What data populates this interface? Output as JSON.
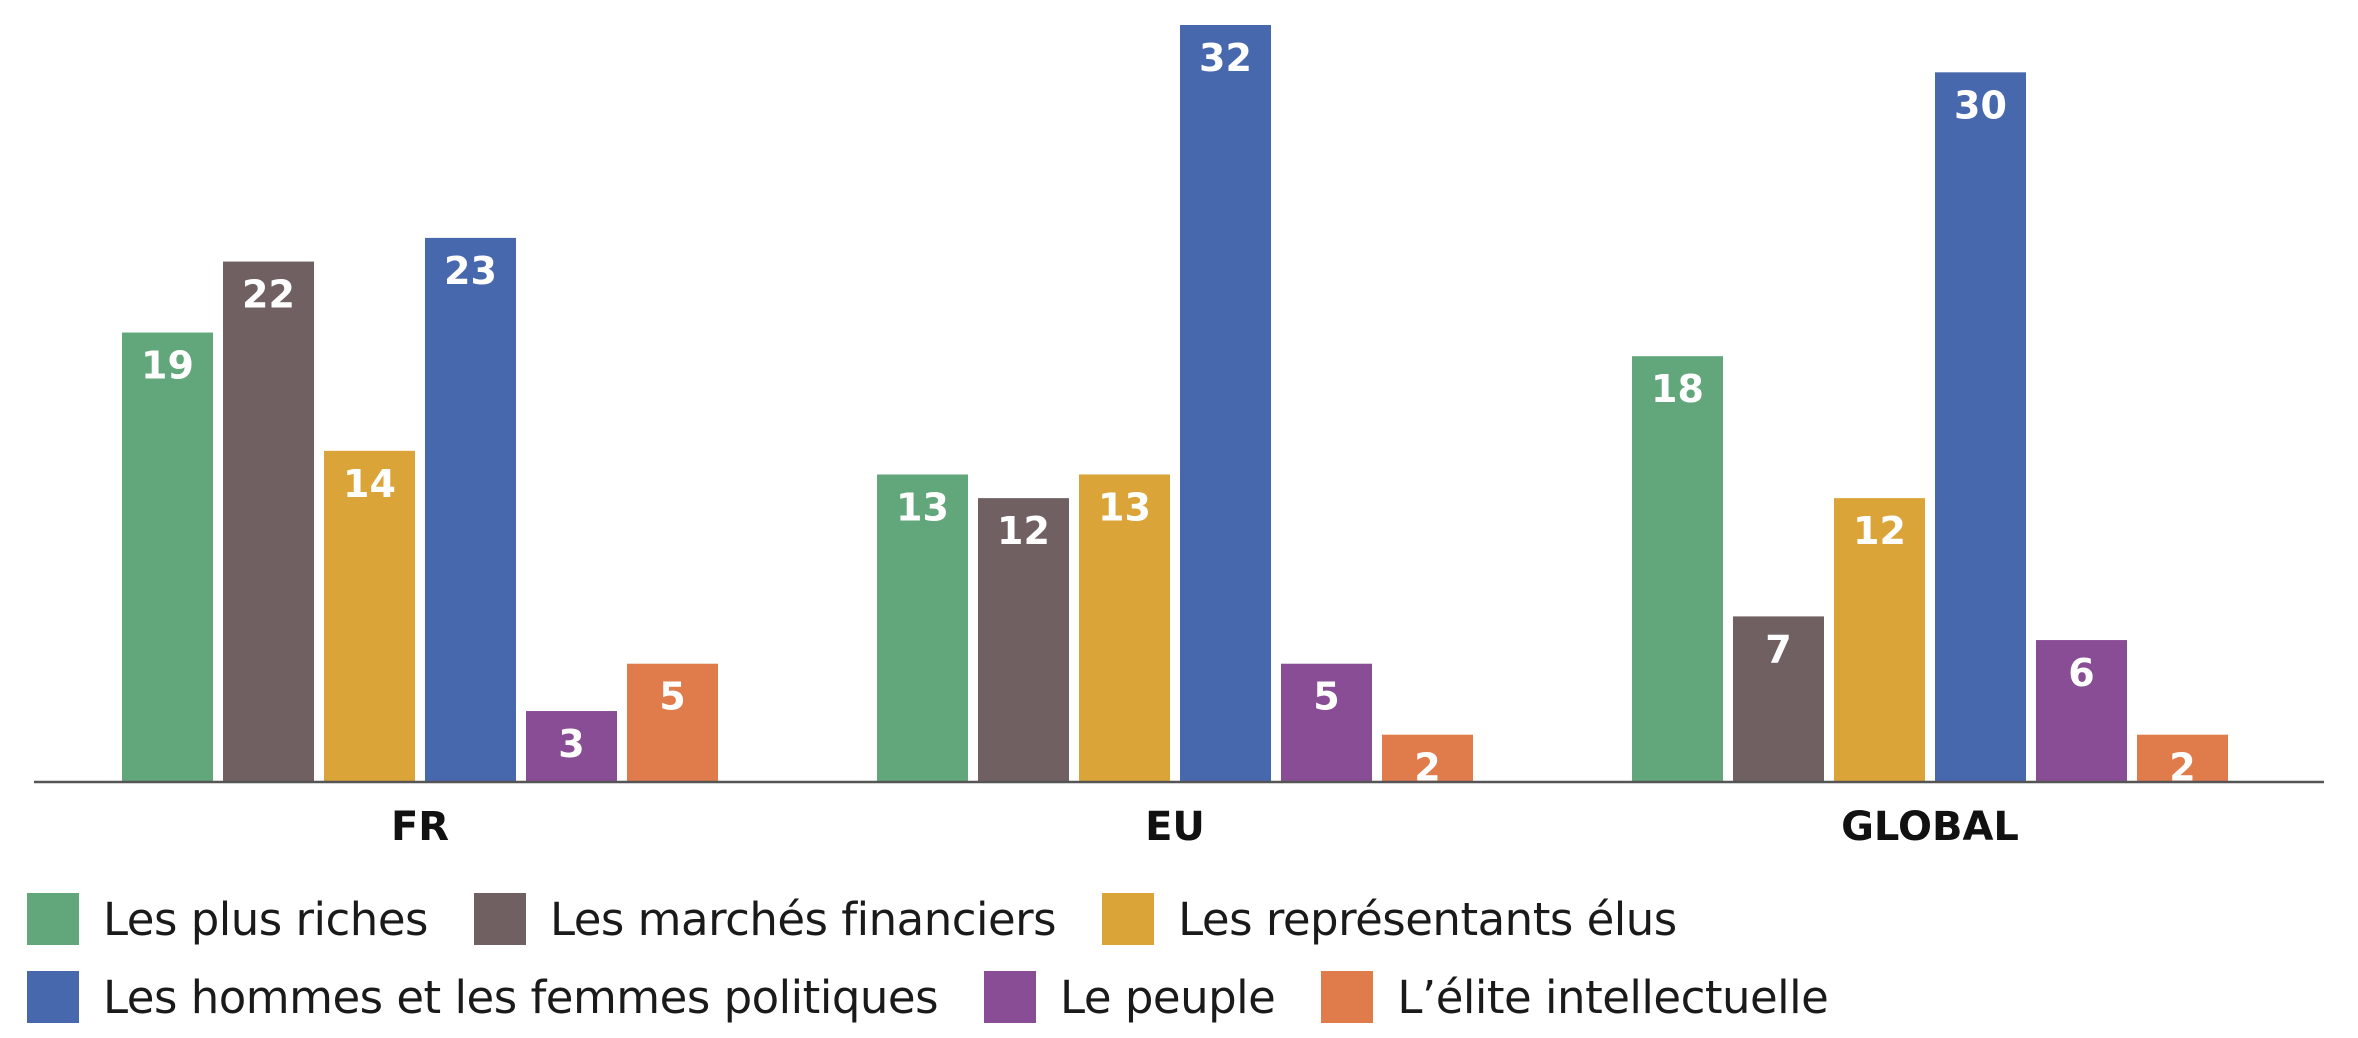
{
  "chart_data": {
    "type": "bar",
    "categories": [
      "FR",
      "EU",
      "GLOBAL"
    ],
    "series": [
      {
        "name": "Les plus riches",
        "color": "#62a77b",
        "values": [
          19,
          13,
          18
        ]
      },
      {
        "name": "Les marchés financiers",
        "color": "#706062",
        "values": [
          22,
          12,
          7
        ]
      },
      {
        "name": "Les représentants élus",
        "color": "#dba438",
        "values": [
          14,
          13,
          12
        ]
      },
      {
        "name": "Les hommes et les femmes politiques",
        "color": "#4868ae",
        "values": [
          23,
          32,
          30
        ]
      },
      {
        "name": "Le peuple",
        "color": "#884d94",
        "values": [
          3,
          5,
          6
        ]
      },
      {
        "name": "L’élite intellectuelle",
        "color": "#e07b4c",
        "values": [
          5,
          2,
          2
        ]
      }
    ],
    "ylim": [
      0,
      32
    ],
    "grid": false,
    "data_labels": true,
    "legend_position": "bottom"
  }
}
